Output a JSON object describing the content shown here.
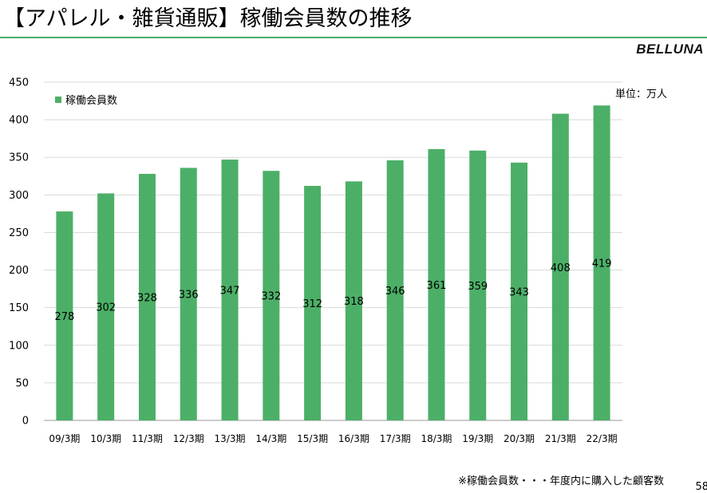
{
  "header": {
    "title": "【アパレル・雑貨通販】稼働会員数の推移",
    "brand": "BELLUNA",
    "accent_color": "#4caf67"
  },
  "unit_label": "単位：万人",
  "footnote": "※稼働会員数・・・年度内に購入した顧客数",
  "page_number": "58",
  "chart_data": {
    "type": "bar",
    "categories": [
      "09/3期",
      "10/3期",
      "11/3期",
      "12/3期",
      "13/3期",
      "14/3期",
      "15/3期",
      "16/3期",
      "17/3期",
      "18/3期",
      "19/3期",
      "20/3期",
      "21/3期",
      "22/3期"
    ],
    "series": [
      {
        "name": "稼働会員数",
        "values": [
          278,
          302,
          328,
          336,
          347,
          332,
          312,
          318,
          346,
          361,
          359,
          343,
          408,
          419
        ],
        "color": "#4caf67"
      }
    ],
    "ylim": [
      0,
      450
    ],
    "yticks": [
      0,
      50,
      100,
      150,
      200,
      250,
      300,
      350,
      400,
      450
    ],
    "grid": true,
    "legend": "top-left",
    "data_labels": "inside-middle"
  }
}
